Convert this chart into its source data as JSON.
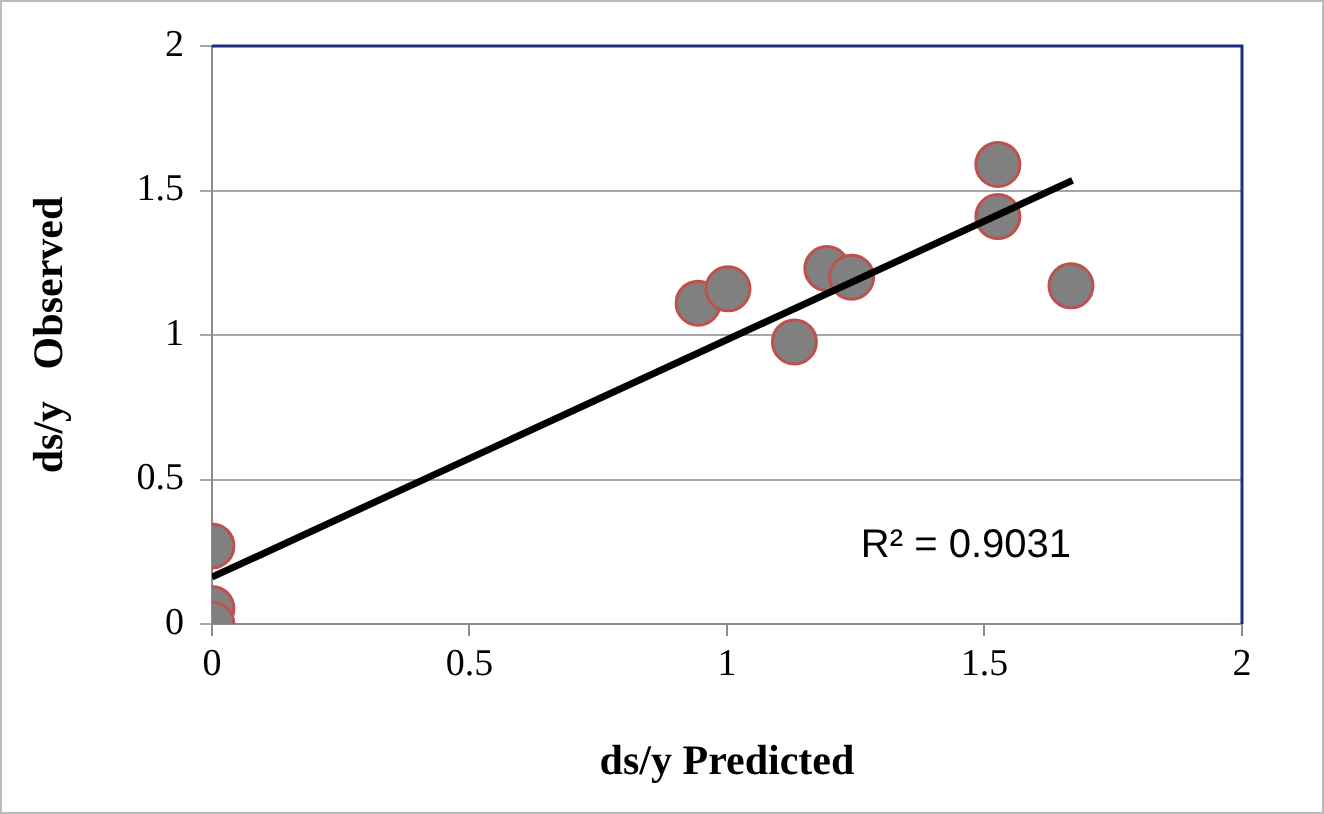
{
  "chart_data": {
    "type": "scatter",
    "xlabel": "ds/y Predicted",
    "ylabel": "ds/y   Observed",
    "xlim": [
      0,
      2
    ],
    "xticks": [
      0,
      0.5,
      1,
      1.5,
      2
    ],
    "ylim": [
      0,
      2
    ],
    "yticks": [
      0,
      0.5,
      1,
      1.5,
      2
    ],
    "grid": "y",
    "legend": false,
    "annotations": [
      "R² = 0.9031"
    ],
    "series": [
      {
        "marker": "circle",
        "color": "#808080",
        "x": [
          0,
          0,
          0,
          0.944,
          1.002,
          1.131,
          1.194,
          1.242,
          1.526,
          1.526,
          1.668
        ],
        "values": [
          0.27,
          0.054,
          0,
          1.11,
          1.16,
          0.976,
          1.23,
          1.2,
          1.59,
          1.41,
          1.17
        ]
      },
      {
        "type": "line",
        "marker": "none",
        "color": "#000000",
        "line_style": "solid",
        "x": [
          0,
          1.671
        ],
        "values": [
          0.162,
          1.535
        ]
      }
    ]
  }
}
